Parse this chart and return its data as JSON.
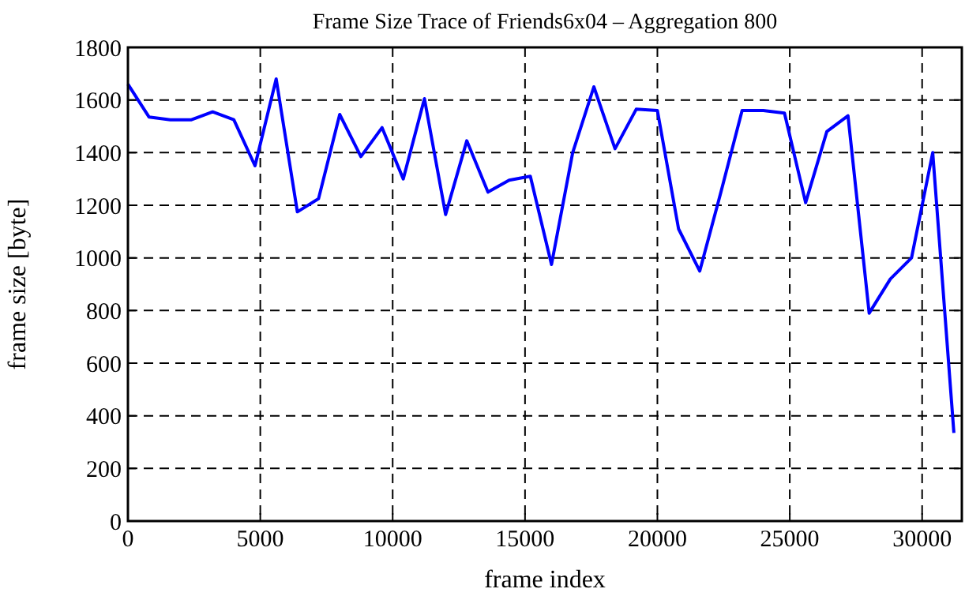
{
  "chart_data": {
    "type": "line",
    "title": "Frame Size Trace of Friends6x04 – Aggregation 800",
    "xlabel": "frame index",
    "ylabel": "frame size [byte]",
    "x": [
      0,
      800,
      1600,
      2400,
      3200,
      4000,
      4800,
      5600,
      6400,
      7200,
      8000,
      8800,
      9600,
      10400,
      11200,
      12000,
      12800,
      13600,
      14400,
      15200,
      16000,
      16800,
      17600,
      18400,
      19200,
      20000,
      20800,
      21600,
      22400,
      23200,
      24000,
      24800,
      25600,
      26400,
      27200,
      28000,
      28800,
      29600,
      30400,
      31200
    ],
    "series": [
      {
        "color": "#0000ff",
        "values": [
          1660,
          1535,
          1525,
          1525,
          1555,
          1525,
          1350,
          1680,
          1175,
          1225,
          1545,
          1385,
          1495,
          1300,
          1605,
          1165,
          1445,
          1250,
          1295,
          1310,
          975,
          1400,
          1650,
          1415,
          1565,
          1560,
          1110,
          950,
          1250,
          1560,
          1560,
          1550,
          1210,
          1480,
          1540,
          790,
          920,
          1000,
          1400,
          335
        ]
      }
    ],
    "xlim": [
      0,
      31500
    ],
    "ylim": [
      0,
      1800
    ],
    "xticks": [
      0,
      5000,
      10000,
      15000,
      20000,
      25000,
      30000
    ],
    "yticks": [
      0,
      200,
      400,
      600,
      800,
      1000,
      1200,
      1400,
      1600,
      1800
    ],
    "grid": true,
    "marker": "none",
    "line_style": "solid"
  }
}
